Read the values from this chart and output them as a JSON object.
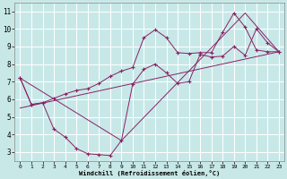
{
  "xlabel": "Windchill (Refroidissement éolien,°C)",
  "background_color": "#c8e8e8",
  "grid_color": "#ffffff",
  "line_color": "#882266",
  "xlim": [
    -0.5,
    23.5
  ],
  "ylim": [
    2.5,
    11.5
  ],
  "xticks": [
    0,
    1,
    2,
    3,
    4,
    5,
    6,
    7,
    8,
    9,
    10,
    11,
    12,
    13,
    14,
    15,
    16,
    17,
    18,
    19,
    20,
    21,
    22,
    23
  ],
  "yticks": [
    3,
    4,
    5,
    6,
    7,
    8,
    9,
    10,
    11
  ],
  "line1_x": [
    0,
    1,
    2,
    3,
    4,
    5,
    6,
    7,
    8,
    9,
    10,
    11,
    12,
    13,
    14,
    15,
    16,
    17,
    18,
    19,
    20,
    21,
    22,
    23
  ],
  "line1_y": [
    7.2,
    5.7,
    5.8,
    4.3,
    3.85,
    3.2,
    2.9,
    2.85,
    2.8,
    3.65,
    6.85,
    7.7,
    8.0,
    7.5,
    6.9,
    7.0,
    8.55,
    8.4,
    8.45,
    9.0,
    8.5,
    10.0,
    9.2,
    8.7
  ],
  "line2_x": [
    0,
    1,
    2,
    3,
    4,
    5,
    6,
    7,
    8,
    9,
    10,
    11,
    12,
    13,
    14,
    15,
    16,
    17,
    18,
    19,
    20,
    21,
    22,
    23
  ],
  "line2_y": [
    7.2,
    5.7,
    5.8,
    6.05,
    6.3,
    6.5,
    6.6,
    6.9,
    7.3,
    7.6,
    7.8,
    9.5,
    9.95,
    9.5,
    8.65,
    8.6,
    8.65,
    8.65,
    9.8,
    10.9,
    10.1,
    8.8,
    8.7,
    8.7
  ],
  "line3_x": [
    0,
    23
  ],
  "line3_y": [
    5.5,
    8.7
  ],
  "line4_x": [
    0,
    9,
    20,
    23
  ],
  "line4_y": [
    7.2,
    3.65,
    10.9,
    8.7
  ]
}
